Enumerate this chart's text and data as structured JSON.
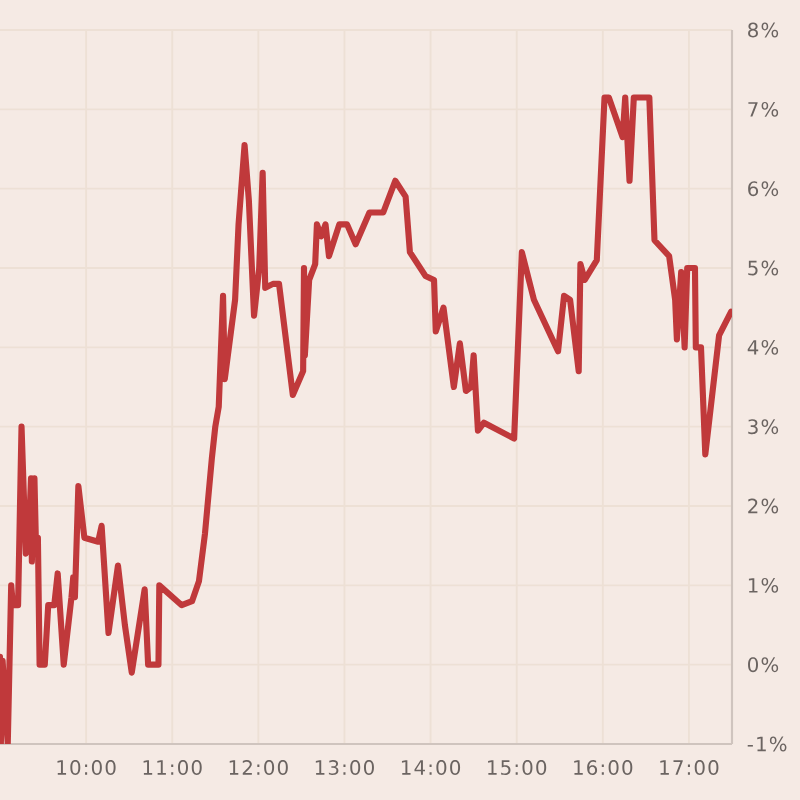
{
  "chart_data": {
    "type": "line",
    "x": [
      9.0,
      9.01,
      9.03,
      9.09,
      9.13,
      9.15,
      9.21,
      9.25,
      9.3,
      9.33,
      9.36,
      9.37,
      9.4,
      9.42,
      9.44,
      9.46,
      9.52,
      9.56,
      9.63,
      9.67,
      9.74,
      9.83,
      9.85,
      9.87,
      9.91,
      9.98,
      10.14,
      10.18,
      10.26,
      10.37,
      10.45,
      10.53,
      10.68,
      10.72,
      10.84,
      10.85,
      11.11,
      11.23,
      11.31,
      11.38,
      11.46,
      11.5,
      11.54,
      11.59,
      11.61,
      11.73,
      11.77,
      11.84,
      11.89,
      11.95,
      12.01,
      12.05,
      12.08,
      12.17,
      12.24,
      12.4,
      12.52,
      12.53,
      12.54,
      12.59,
      12.66,
      12.68,
      12.73,
      12.78,
      12.82,
      12.94,
      13.03,
      13.13,
      13.29,
      13.45,
      13.59,
      13.71,
      13.76,
      13.94,
      14.04,
      14.06,
      14.15,
      14.27,
      14.34,
      14.41,
      14.47,
      14.5,
      14.55,
      14.62,
      14.97,
      15.06,
      15.2,
      15.48,
      15.55,
      15.62,
      15.72,
      15.74,
      15.79,
      15.93,
      16.02,
      16.07,
      16.23,
      16.26,
      16.31,
      16.36,
      16.54,
      16.6,
      16.77,
      16.84,
      16.86,
      16.91,
      16.95,
      16.98,
      17.07,
      17.08,
      17.14,
      17.19,
      17.35,
      17.49
    ],
    "series": [
      {
        "color": "#c0393b",
        "values": [
          0.1,
          -1.0,
          0.05,
          -1.0,
          1.0,
          0.75,
          0.75,
          3.0,
          1.4,
          1.5,
          2.35,
          1.3,
          2.35,
          1.4,
          1.6,
          0.0,
          0.0,
          0.75,
          0.75,
          1.15,
          0.0,
          0.85,
          1.1,
          0.85,
          2.25,
          1.6,
          1.55,
          1.75,
          0.4,
          1.25,
          0.5,
          -0.1,
          0.95,
          0.0,
          0.0,
          1.0,
          0.75,
          0.8,
          1.05,
          1.65,
          2.6,
          3.0,
          3.25,
          4.65,
          3.6,
          4.6,
          5.55,
          6.55,
          5.85,
          4.4,
          5.0,
          6.2,
          4.75,
          4.8,
          4.8,
          3.4,
          3.7,
          5.0,
          3.9,
          4.85,
          5.05,
          5.55,
          5.4,
          5.55,
          5.15,
          5.55,
          5.55,
          5.3,
          5.7,
          5.7,
          6.1,
          5.9,
          5.2,
          4.9,
          4.85,
          4.2,
          4.5,
          3.5,
          4.05,
          3.45,
          3.5,
          3.9,
          2.95,
          3.05,
          2.85,
          5.2,
          4.6,
          3.95,
          4.65,
          4.6,
          3.7,
          5.05,
          4.85,
          5.1,
          7.15,
          7.15,
          6.65,
          7.15,
          6.1,
          7.15,
          7.15,
          5.35,
          5.15,
          4.6,
          4.1,
          4.95,
          4.0,
          5.0,
          5.0,
          4.0,
          4.0,
          2.65,
          4.15,
          4.45
        ]
      }
    ],
    "xlim": [
      9,
      17.5
    ],
    "xticks": [
      {
        "value": 10,
        "label": "10:00"
      },
      {
        "value": 11,
        "label": "11:00"
      },
      {
        "value": 12,
        "label": "12:00"
      },
      {
        "value": 13,
        "label": "13:00"
      },
      {
        "value": 14,
        "label": "14:00"
      },
      {
        "value": 15,
        "label": "15:00"
      },
      {
        "value": 16,
        "label": "16:00"
      },
      {
        "value": 17,
        "label": "17:00"
      }
    ],
    "ylim": [
      -1,
      8
    ],
    "yticks": [
      {
        "value": -1,
        "label": "-1%"
      },
      {
        "value": 0,
        "label": "0%"
      },
      {
        "value": 1,
        "label": "1%"
      },
      {
        "value": 2,
        "label": "2%"
      },
      {
        "value": 3,
        "label": "3%"
      },
      {
        "value": 4,
        "label": "4%"
      },
      {
        "value": 5,
        "label": "5%"
      },
      {
        "value": 6,
        "label": "6%"
      },
      {
        "value": 7,
        "label": "7%"
      },
      {
        "value": 8,
        "label": "8%"
      }
    ],
    "grid": true,
    "line_style": "solid"
  }
}
